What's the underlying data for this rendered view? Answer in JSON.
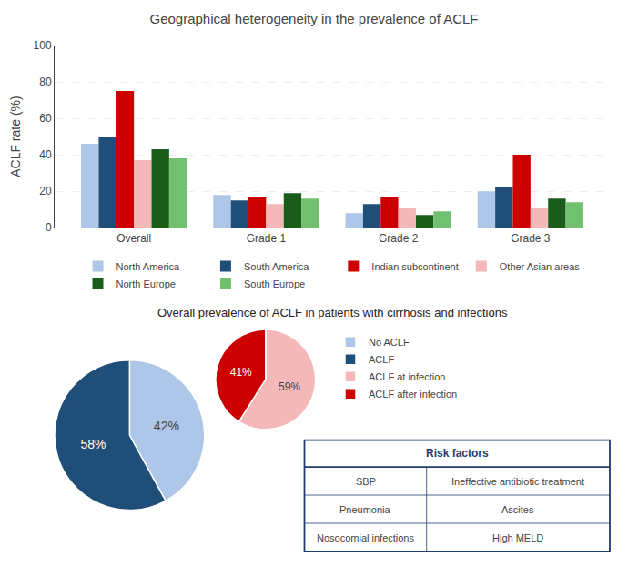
{
  "chart_data": [
    {
      "type": "bar",
      "title": "Geographical heterogeneity in the prevalence of ACLF",
      "categories": [
        "Overall",
        "Grade 1",
        "Grade 2",
        "Grade 3"
      ],
      "series": [
        {
          "name": "North America",
          "color": "#aec6e8",
          "values": [
            46,
            18,
            8,
            20
          ]
        },
        {
          "name": "South America",
          "color": "#1f4e79",
          "values": [
            50,
            15,
            13,
            22
          ]
        },
        {
          "name": "Indian subcontinent",
          "color": "#cc0000",
          "values": [
            75,
            17,
            17,
            40
          ]
        },
        {
          "name": "Other Asian areas",
          "color": "#f4b8b8",
          "values": [
            37,
            13,
            11,
            11
          ]
        },
        {
          "name": "North Europe",
          "color": "#1a5c1a",
          "values": [
            43,
            19,
            7,
            16
          ]
        },
        {
          "name": "South Europe",
          "color": "#70c070",
          "values": [
            38,
            16,
            9,
            14
          ]
        }
      ],
      "ylabel": "ACLF rate (%)",
      "ylim": [
        0,
        100
      ],
      "yticks": [
        0,
        20,
        40,
        60,
        80,
        100
      ],
      "grid": true,
      "legend": "bottom"
    },
    {
      "type": "pie",
      "title": "Overall prevalence of ACLF in patients with cirrhosis and infections",
      "categories": [
        "No ACLF",
        "ACLF"
      ],
      "values": [
        42,
        58
      ],
      "value_labels": [
        "42%",
        "58%"
      ],
      "colors": [
        "#aec6e8",
        "#1f4e79"
      ],
      "data_labels": true
    },
    {
      "type": "pie",
      "categories": [
        "ACLF at infection",
        "ACLF after infection"
      ],
      "values": [
        59,
        41
      ],
      "value_labels": [
        "59%",
        "41%"
      ],
      "colors": [
        "#f4b8b8",
        "#cc0000"
      ],
      "data_labels": true
    },
    {
      "type": "table",
      "title": "Risk factors",
      "rows": [
        [
          "SBP",
          "Ineffective antibiotic treatment"
        ],
        [
          "Pneumonia",
          "Ascites"
        ],
        [
          "Nosocomial infections",
          "High MELD"
        ]
      ]
    }
  ]
}
